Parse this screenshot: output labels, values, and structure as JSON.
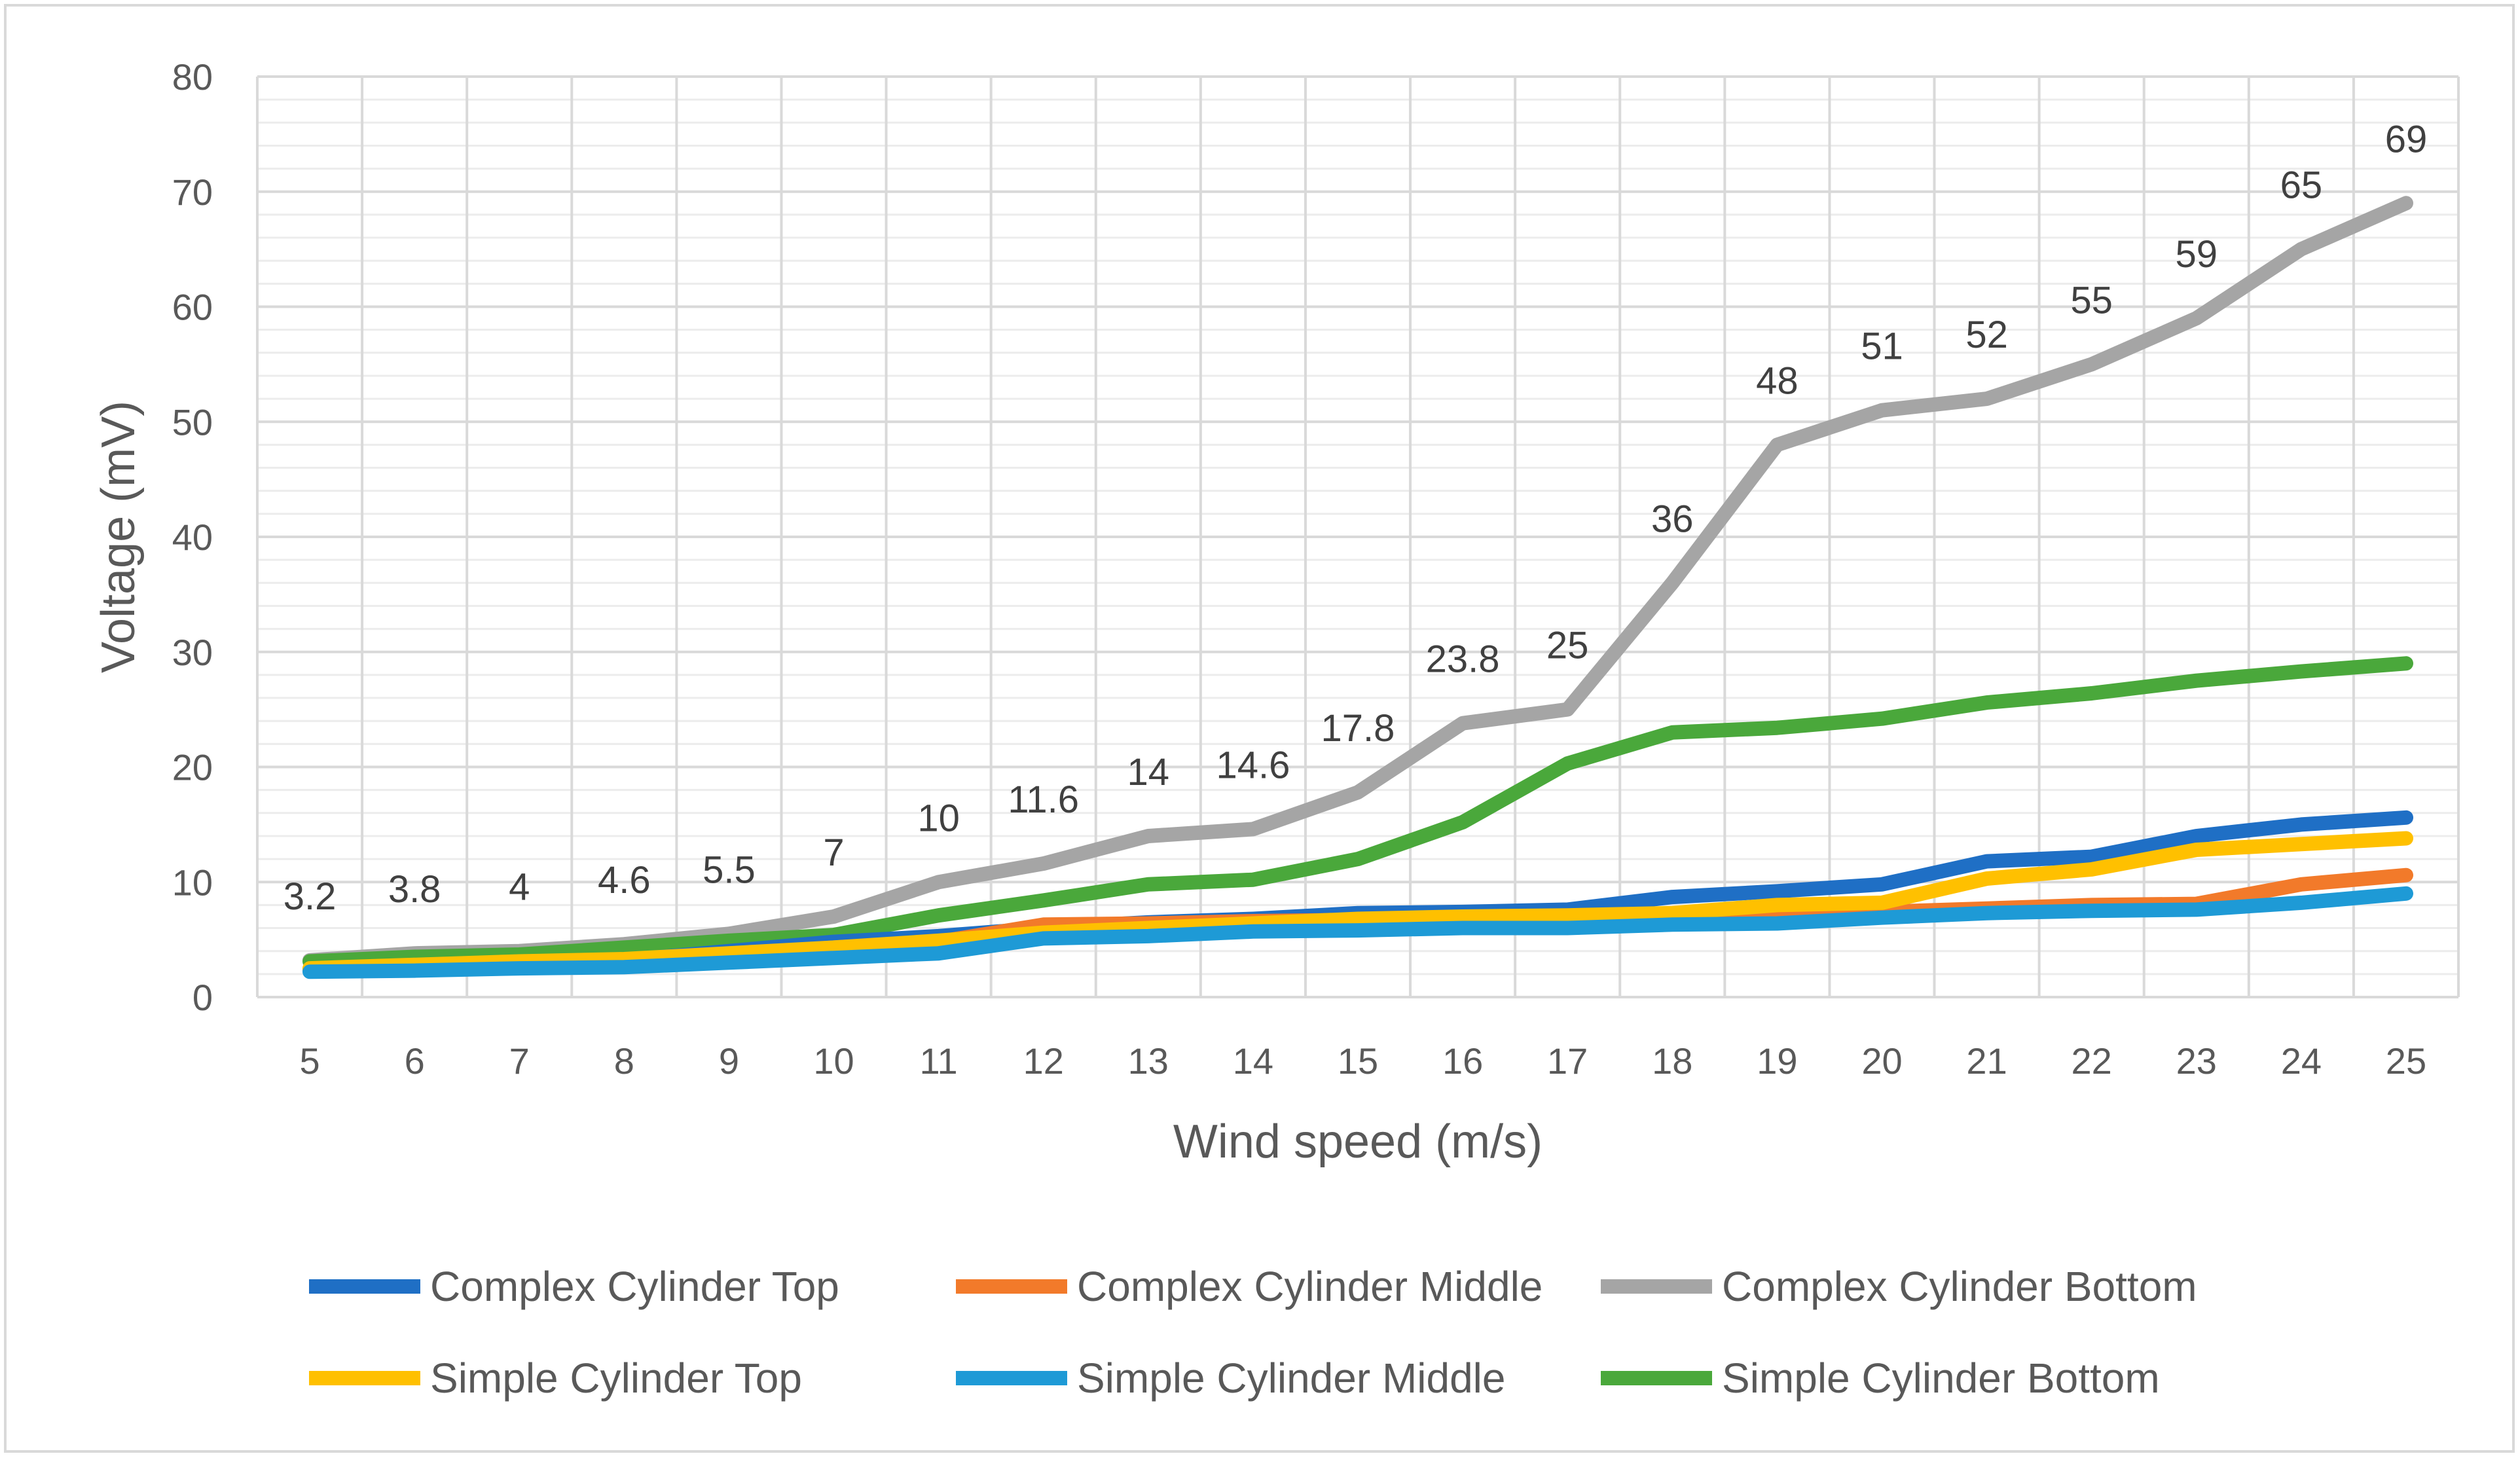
{
  "chart_data": {
    "type": "line",
    "title": "",
    "xlabel": "Wind speed (m/s)",
    "ylabel": "Voltage (mV)",
    "ylim": [
      0,
      80
    ],
    "yticks": [
      0,
      10,
      20,
      30,
      40,
      50,
      60,
      70,
      80
    ],
    "grid": true,
    "legend_position": "bottom",
    "x": [
      5,
      6,
      7,
      8,
      9,
      10,
      11,
      12,
      13,
      14,
      15,
      16,
      17,
      18,
      19,
      20,
      21,
      22,
      23,
      24,
      25
    ],
    "series": [
      {
        "name": "Complex Cylinder Top",
        "color": "#1f6fc5",
        "values": [
          2.3,
          2.5,
          2.8,
          3.2,
          4.0,
          4.8,
          5.3,
          6.0,
          6.5,
          6.8,
          7.3,
          7.4,
          7.6,
          8.7,
          9.2,
          9.8,
          11.8,
          12.2,
          14.0,
          15.0,
          15.6
        ],
        "labeled": false
      },
      {
        "name": "Complex Cylinder Middle",
        "color": "#f27a2a",
        "values": [
          2.4,
          2.6,
          2.8,
          3.1,
          3.6,
          4.3,
          4.8,
          6.3,
          6.4,
          6.6,
          6.7,
          6.8,
          6.9,
          7.0,
          7.3,
          7.4,
          7.7,
          8.0,
          8.1,
          9.8,
          10.6
        ],
        "labeled": false
      },
      {
        "name": "Complex Cylinder Bottom",
        "color": "#a5a5a5",
        "values": [
          3.2,
          3.8,
          4.0,
          4.6,
          5.5,
          7.0,
          10.0,
          11.6,
          14.0,
          14.6,
          17.8,
          23.8,
          25.0,
          36.0,
          48.0,
          51.0,
          52.0,
          55.0,
          59.0,
          65.0,
          69.0
        ],
        "labeled": true
      },
      {
        "name": "Simple Cylinder Top",
        "color": "#ffc000",
        "values": [
          2.5,
          2.8,
          3.1,
          3.3,
          3.8,
          4.3,
          4.9,
          5.6,
          6.0,
          6.4,
          6.8,
          7.0,
          7.1,
          7.3,
          8.0,
          8.2,
          10.3,
          11.1,
          12.8,
          13.3,
          13.8
        ],
        "labeled": false
      },
      {
        "name": "Simple Cylinder Middle",
        "color": "#1e9ad6",
        "values": [
          2.2,
          2.3,
          2.5,
          2.6,
          3.0,
          3.4,
          3.8,
          5.1,
          5.3,
          5.7,
          5.8,
          6.0,
          6.0,
          6.3,
          6.4,
          6.9,
          7.3,
          7.5,
          7.6,
          8.2,
          9.0
        ],
        "labeled": false
      },
      {
        "name": "Simple Cylinder Bottom",
        "color": "#4aa83b",
        "values": [
          3.1,
          3.5,
          3.7,
          4.3,
          4.9,
          5.4,
          7.1,
          8.4,
          9.8,
          10.2,
          12.0,
          15.2,
          20.3,
          23.0,
          23.4,
          24.2,
          25.6,
          26.4,
          27.5,
          28.3,
          29.0
        ],
        "labeled": false
      }
    ],
    "data_labels": [
      "3.2",
      "3.8",
      "4",
      "4.6",
      "5.5",
      "7",
      "10",
      "11.6",
      "14",
      "14.6",
      "17.8",
      "23.8",
      "25",
      "36",
      "48",
      "51",
      "52",
      "55",
      "59",
      "65",
      "69"
    ]
  }
}
